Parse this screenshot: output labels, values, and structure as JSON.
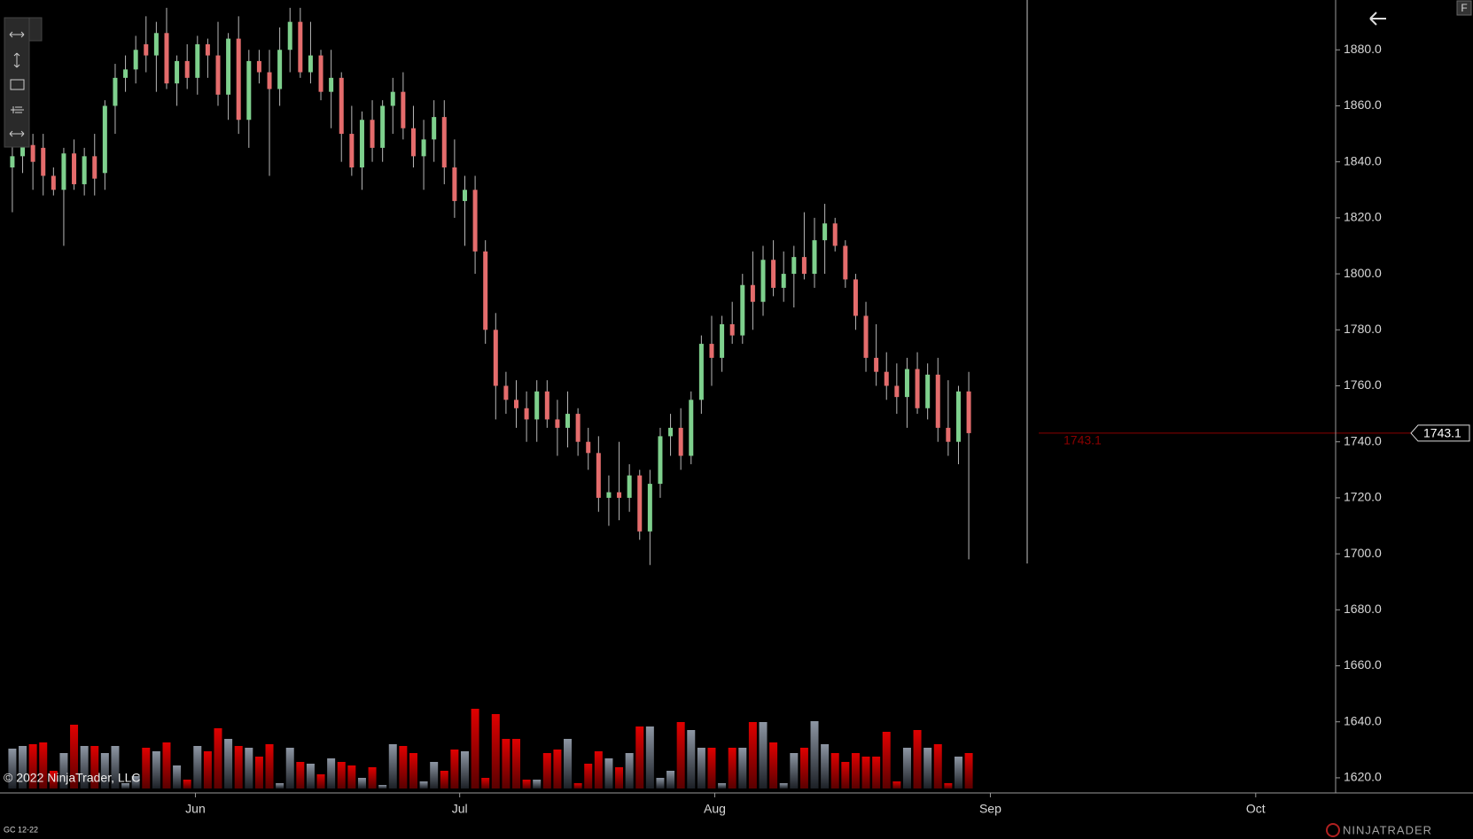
{
  "chart_data": {
    "type": "candlestick",
    "symbol": "GC 12-22",
    "copyright": "© 2022 NinjaTrader, LLC",
    "brand": "NINJATRADER",
    "corner_button": "F",
    "last_price": 1743.1,
    "colors": {
      "up": "#7ed08d",
      "down": "#e46c6c",
      "wick": "#b8b8b8",
      "volume_up": "#8d96a3",
      "volume_down": "#e00000",
      "last_price": "#8b0000"
    },
    "grid": false,
    "xlim": [
      -1.2,
      128.5
    ],
    "xticks": [
      {
        "value": 17.8,
        "label": "Jun"
      },
      {
        "value": 43.5,
        "label": "Jul"
      },
      {
        "value": 68.3,
        "label": "Aug"
      },
      {
        "value": 95.1,
        "label": "Sep"
      },
      {
        "value": 120.9,
        "label": "Oct"
      }
    ],
    "ylim": [
      1614.6,
      1897.8
    ],
    "yticks": [
      {
        "value": 1620,
        "label": "1620.0"
      },
      {
        "value": 1640,
        "label": "1640.0"
      },
      {
        "value": 1660,
        "label": "1660.0"
      },
      {
        "value": 1680,
        "label": "1680.0"
      },
      {
        "value": 1700,
        "label": "1700.0"
      },
      {
        "value": 1720,
        "label": "1720.0"
      },
      {
        "value": 1740,
        "label": "1740.0"
      },
      {
        "value": 1760,
        "label": "1760.0"
      },
      {
        "value": 1780,
        "label": "1780.0"
      },
      {
        "value": 1800,
        "label": "1800.0"
      },
      {
        "value": 1820,
        "label": "1820.0"
      },
      {
        "value": 1840,
        "label": "1840.0"
      },
      {
        "value": 1860,
        "label": "1860.0"
      },
      {
        "value": 1880,
        "label": "1880.0"
      }
    ],
    "volume_lim": [
      0,
      100
    ],
    "x": [
      0,
      1,
      2,
      3,
      4,
      5,
      6,
      7,
      8,
      9,
      10,
      11,
      12,
      13,
      14,
      15,
      16,
      17,
      18,
      19,
      20,
      21,
      22,
      23,
      24,
      25,
      26,
      27,
      28,
      29,
      30,
      31,
      32,
      33,
      34,
      35,
      36,
      37,
      38,
      39,
      40,
      41,
      42,
      43,
      44,
      45,
      46,
      47,
      48,
      49,
      50,
      51,
      52,
      53,
      54,
      55,
      56,
      57,
      58,
      59,
      60,
      61,
      62,
      63,
      64,
      65,
      66,
      67,
      68,
      69,
      70,
      71,
      72,
      73,
      74,
      75,
      76,
      77,
      78,
      79,
      80,
      81,
      82,
      83,
      84,
      85,
      86,
      87,
      88,
      89,
      90,
      91,
      92,
      93
    ],
    "open": [
      1838,
      1842,
      1846,
      1845,
      1835,
      1830,
      1843,
      1832,
      1842,
      1836,
      1860,
      1870,
      1873,
      1882,
      1878,
      1886,
      1868,
      1876,
      1870,
      1882,
      1878,
      1864,
      1884,
      1855,
      1876,
      1872,
      1866,
      1880,
      1890,
      1872,
      1878,
      1865,
      1870,
      1850,
      1838,
      1855,
      1845,
      1860,
      1865,
      1852,
      1842,
      1848,
      1856,
      1838,
      1826,
      1830,
      1808,
      1780,
      1760,
      1755,
      1752,
      1748,
      1758,
      1748,
      1745,
      1750,
      1740,
      1736,
      1720,
      1722,
      1720,
      1728,
      1708,
      1725,
      1742,
      1745,
      1735,
      1755,
      1775,
      1770,
      1782,
      1778,
      1796,
      1790,
      1805,
      1795,
      1800,
      1806,
      1800,
      1812,
      1818,
      1810,
      1798,
      1785,
      1770,
      1765,
      1760,
      1756,
      1766,
      1752,
      1764,
      1745,
      1740,
      1758
    ],
    "high": [
      1848,
      1852,
      1850,
      1850,
      1838,
      1845,
      1848,
      1845,
      1850,
      1862,
      1875,
      1878,
      1885,
      1892,
      1890,
      1895,
      1878,
      1882,
      1885,
      1884,
      1890,
      1886,
      1892,
      1880,
      1880,
      1880,
      1888,
      1895,
      1895,
      1890,
      1880,
      1880,
      1872,
      1860,
      1858,
      1862,
      1862,
      1870,
      1872,
      1860,
      1855,
      1862,
      1862,
      1848,
      1835,
      1835,
      1812,
      1786,
      1765,
      1762,
      1758,
      1762,
      1762,
      1755,
      1758,
      1752,
      1745,
      1742,
      1728,
      1740,
      1732,
      1730,
      1730,
      1745,
      1750,
      1752,
      1758,
      1778,
      1785,
      1785,
      1790,
      1800,
      1808,
      1810,
      1812,
      1808,
      1810,
      1822,
      1820,
      1825,
      1820,
      1812,
      1800,
      1790,
      1782,
      1772,
      1768,
      1770,
      1772,
      1768,
      1770,
      1762,
      1760,
      1765
    ],
    "low": [
      1822,
      1836,
      1830,
      1828,
      1828,
      1810,
      1830,
      1828,
      1828,
      1830,
      1850,
      1865,
      1868,
      1872,
      1865,
      1866,
      1860,
      1866,
      1864,
      1870,
      1860,
      1855,
      1850,
      1845,
      1868,
      1835,
      1860,
      1872,
      1870,
      1868,
      1862,
      1852,
      1840,
      1835,
      1830,
      1840,
      1840,
      1850,
      1848,
      1838,
      1830,
      1840,
      1832,
      1820,
      1810,
      1800,
      1775,
      1748,
      1750,
      1745,
      1740,
      1740,
      1745,
      1735,
      1738,
      1735,
      1730,
      1715,
      1710,
      1712,
      1715,
      1705,
      1696,
      1720,
      1735,
      1730,
      1732,
      1750,
      1760,
      1765,
      1775,
      1775,
      1780,
      1785,
      1792,
      1790,
      1788,
      1798,
      1795,
      1800,
      1808,
      1795,
      1780,
      1765,
      1760,
      1755,
      1750,
      1745,
      1750,
      1748,
      1740,
      1735,
      1732,
      1698
    ],
    "close": [
      1842,
      1846,
      1840,
      1835,
      1830,
      1843,
      1832,
      1842,
      1834,
      1860,
      1870,
      1873,
      1880,
      1878,
      1886,
      1868,
      1876,
      1870,
      1882,
      1878,
      1864,
      1884,
      1855,
      1876,
      1872,
      1866,
      1880,
      1890,
      1872,
      1878,
      1865,
      1870,
      1850,
      1838,
      1855,
      1845,
      1860,
      1865,
      1852,
      1842,
      1848,
      1856,
      1838,
      1826,
      1830,
      1808,
      1780,
      1760,
      1755,
      1752,
      1748,
      1758,
      1748,
      1745,
      1750,
      1740,
      1736,
      1720,
      1722,
      1720,
      1728,
      1708,
      1725,
      1742,
      1745,
      1735,
      1755,
      1775,
      1770,
      1782,
      1778,
      1796,
      1790,
      1805,
      1795,
      1800,
      1806,
      1800,
      1812,
      1818,
      1810,
      1798,
      1785,
      1770,
      1765,
      1760,
      1756,
      1766,
      1752,
      1764,
      1745,
      1740,
      1758,
      1743.1
    ],
    "volume": [
      45,
      48,
      50,
      52,
      20,
      40,
      72,
      48,
      48,
      40,
      48,
      6,
      14,
      46,
      42,
      52,
      26,
      10,
      48,
      42,
      68,
      56,
      48,
      46,
      36,
      50,
      6,
      46,
      30,
      28,
      16,
      34,
      30,
      26,
      12,
      24,
      4,
      50,
      48,
      40,
      8,
      30,
      20,
      44,
      42,
      90,
      12,
      84,
      56,
      56,
      10,
      10,
      40,
      44,
      56,
      6,
      28,
      42,
      34,
      24,
      40,
      70,
      70,
      12,
      20,
      75,
      66,
      46,
      46,
      6,
      46,
      46,
      75,
      75,
      52,
      6,
      40,
      46,
      76,
      50,
      40,
      30,
      40,
      36,
      36,
      64,
      8,
      46,
      66,
      46,
      50,
      6,
      36,
      40
    ]
  }
}
